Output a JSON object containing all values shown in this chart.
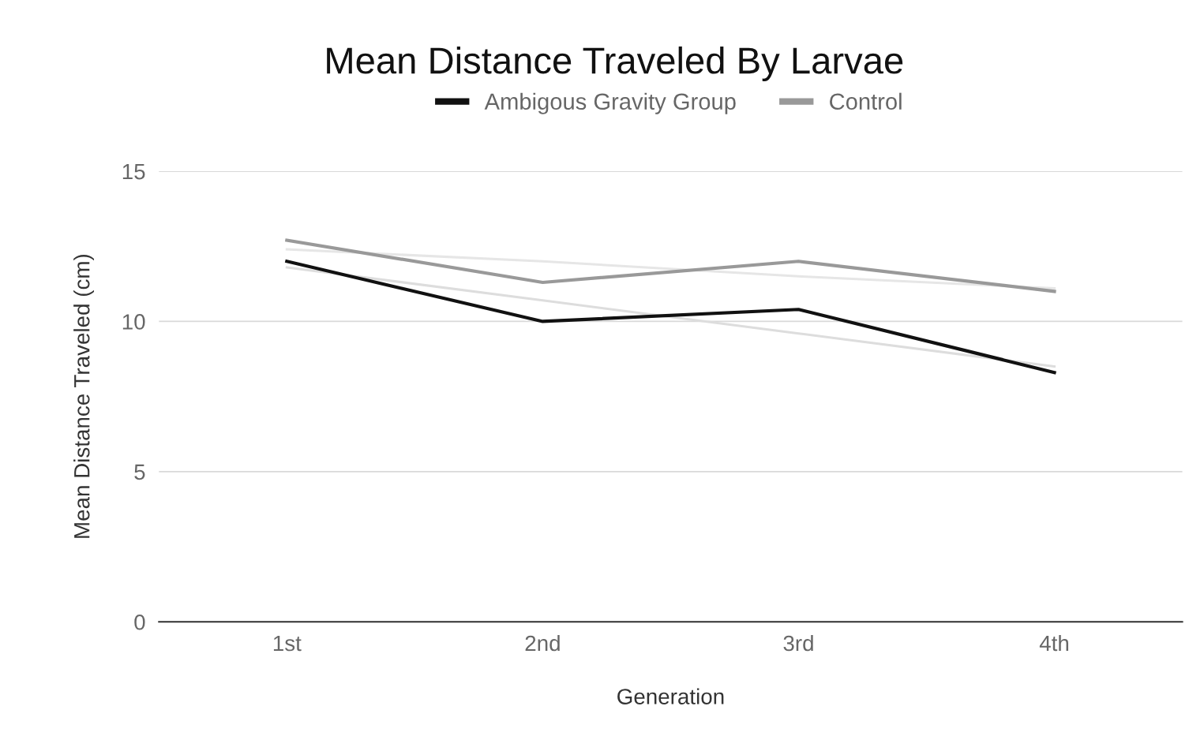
{
  "chart_data": {
    "type": "line",
    "title": "Mean Distance Traveled By Larvae",
    "xlabel": "Generation",
    "ylabel": "Mean Distance Traveled (cm)",
    "categories": [
      "1st",
      "2nd",
      "3rd",
      "4th"
    ],
    "series": [
      {
        "name": "Ambigous Gravity Group",
        "color": "#111111",
        "values": [
          12.0,
          10.0,
          10.4,
          8.3
        ]
      },
      {
        "name": "Control",
        "color": "#999999",
        "values": [
          12.7,
          11.3,
          12.0,
          11.0
        ]
      },
      {
        "type": "line",
        "color": "#dddddd",
        "values": [
          11.8,
          10.7,
          9.6,
          8.5
        ]
      },
      {
        "type": "line",
        "color": "#e6e6e6",
        "values": [
          12.4,
          12.0,
          11.5,
          11.1
        ]
      }
    ],
    "ylim": [
      0,
      15
    ],
    "yticks": [
      0,
      5,
      10,
      15
    ],
    "grid": "y",
    "legend": "top",
    "marker": "none",
    "line_style": "solid"
  }
}
